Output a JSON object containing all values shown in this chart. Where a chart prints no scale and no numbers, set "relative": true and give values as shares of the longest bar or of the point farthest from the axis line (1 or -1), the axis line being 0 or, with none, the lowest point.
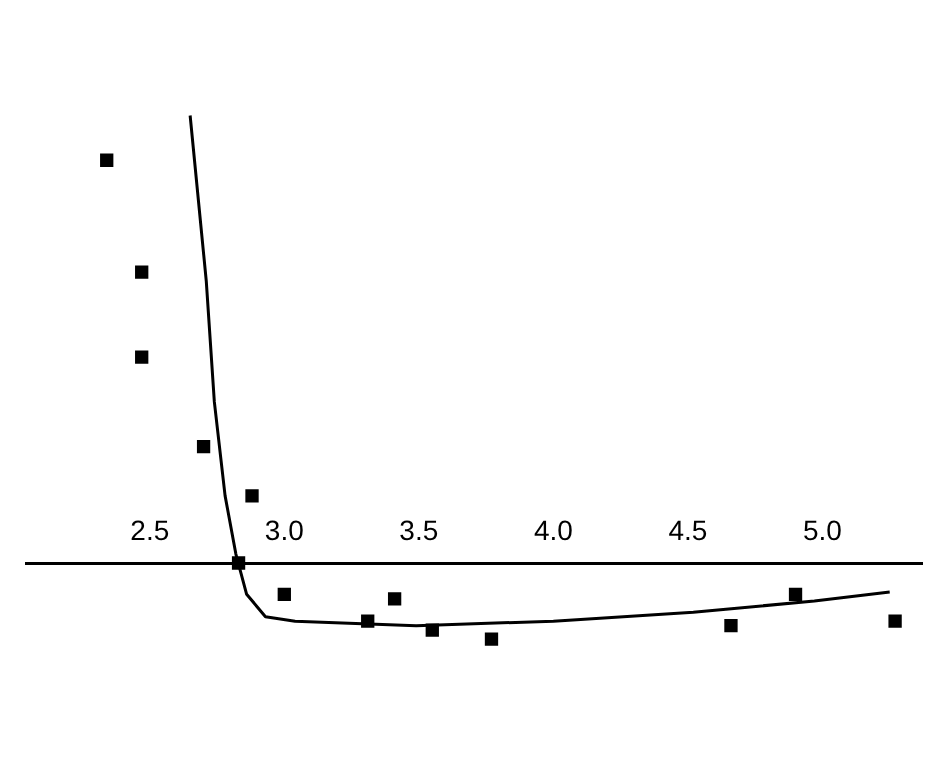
{
  "chart_data": {
    "type": "scatter",
    "relative": true,
    "marker": "square",
    "grid": false,
    "legend": false,
    "xlim": [
      2.04,
      5.37
    ],
    "xticks": [
      2.5,
      {
        "value": 3,
        "label": "3.0"
      },
      3.5,
      {
        "value": 4,
        "label": "4.0"
      },
      4.5,
      {
        "value": 5,
        "label": "5.0"
      }
    ],
    "series": [
      {
        "color": "#000000",
        "x": [
          2.34,
          2.47,
          2.47,
          2.7,
          2.88,
          2.83,
          3.0,
          3.31,
          3.41,
          3.55,
          3.77,
          4.66,
          4.9,
          5.27
        ],
        "values": [
          0.9,
          0.65,
          0.46,
          0.26,
          0.15,
          0,
          -0.07,
          -0.13,
          -0.08,
          -0.15,
          -0.17,
          -0.14,
          -0.07,
          -0.13
        ]
      },
      {
        "type": "line",
        "color": "#000000",
        "marker": "none",
        "x": [
          2.65,
          2.71,
          2.74,
          2.78,
          2.82,
          2.86,
          2.93,
          3.04,
          3.49,
          4.0,
          4.52,
          4.97,
          5.25
        ],
        "values": [
          1,
          0.63,
          0.36,
          0.15,
          0.02,
          -0.07,
          -0.12,
          -0.13,
          -0.14,
          -0.13,
          -0.11,
          -0.085,
          -0.065
        ]
      }
    ]
  }
}
